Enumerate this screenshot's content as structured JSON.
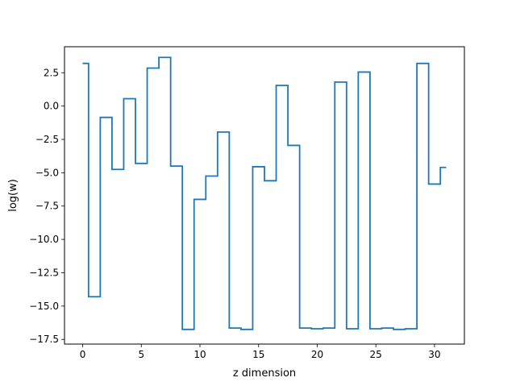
{
  "chart_data": {
    "type": "line",
    "step": "mid",
    "title": "",
    "xlabel": "z dimension",
    "ylabel": "log(w)",
    "xlim": [
      -1.55,
      32.55
    ],
    "ylim": [
      -17.85,
      4.45
    ],
    "xticks": [
      0,
      5,
      10,
      15,
      20,
      25,
      30
    ],
    "yticks": [
      2.5,
      0.0,
      -2.5,
      -5.0,
      -7.5,
      -10.0,
      -12.5,
      -15.0,
      -17.5
    ],
    "xtick_labels": [
      "0",
      "5",
      "10",
      "15",
      "20",
      "25",
      "30"
    ],
    "ytick_labels": [
      "2.5",
      "0.0",
      "−2.5",
      "−5.0",
      "−7.5",
      "−10.0",
      "−12.5",
      "−15.0",
      "−17.5"
    ],
    "grid": false,
    "legend": false,
    "series": [
      {
        "color": "#1f77b4",
        "x": [
          0,
          1,
          2,
          3,
          4,
          5,
          6,
          7,
          8,
          9,
          10,
          11,
          12,
          13,
          14,
          15,
          16,
          17,
          18,
          19,
          20,
          21,
          22,
          23,
          24,
          25,
          26,
          27,
          28,
          29,
          30,
          31
        ],
        "y": [
          3.2,
          -14.3,
          -0.85,
          -4.75,
          0.55,
          -4.3,
          2.85,
          3.65,
          -4.5,
          -16.75,
          -7.0,
          -5.25,
          -1.95,
          -16.65,
          -16.75,
          -4.55,
          -5.6,
          1.55,
          -2.95,
          -16.65,
          -16.7,
          -16.65,
          1.8,
          -16.7,
          2.55,
          -16.7,
          -16.65,
          -16.75,
          -16.7,
          3.2,
          -5.85,
          -4.6
        ]
      }
    ]
  }
}
